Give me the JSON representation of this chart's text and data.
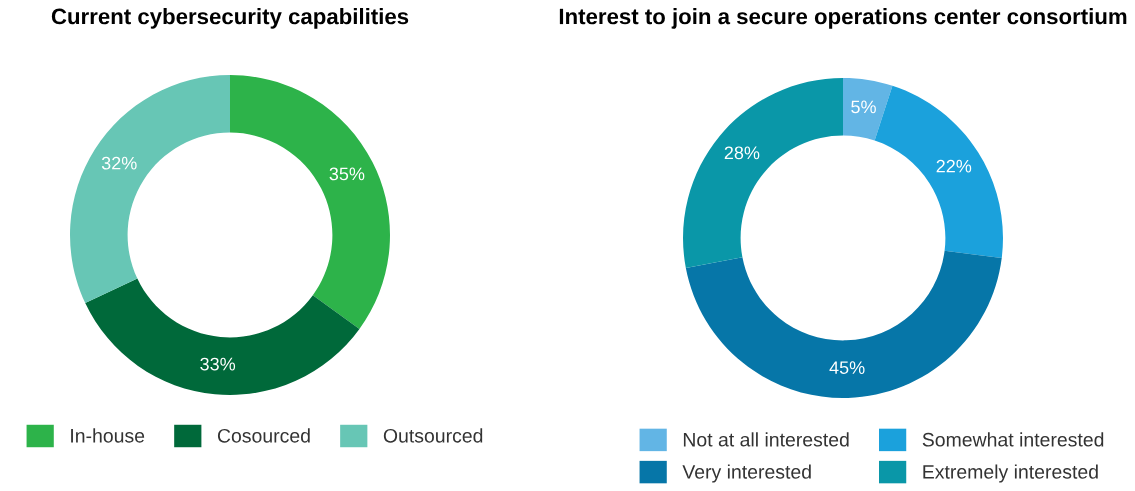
{
  "chart_data": [
    {
      "type": "donut",
      "title": "Current cybersecurity capabilities",
      "categories": [
        "In-house",
        "Cosourced",
        "Outsourced"
      ],
      "values": [
        35,
        33,
        32
      ],
      "value_labels": [
        "35%",
        "33%",
        "32%"
      ],
      "colors": [
        "#2db34a",
        "#00693a",
        "#67c6b5"
      ],
      "legend": "bottom"
    },
    {
      "type": "donut",
      "title": "Interest to join a secure operations center consortium",
      "categories": [
        "Not at all interested",
        "Somewhat interested",
        "Very interested",
        "Extremely interested"
      ],
      "values": [
        5,
        22,
        45,
        28
      ],
      "value_labels": [
        "5%",
        "22%",
        "45%",
        "28%"
      ],
      "colors": [
        "#62b5e5",
        "#1ba1dc",
        "#0676a8",
        "#0a97a8"
      ],
      "legend": "bottom"
    }
  ]
}
